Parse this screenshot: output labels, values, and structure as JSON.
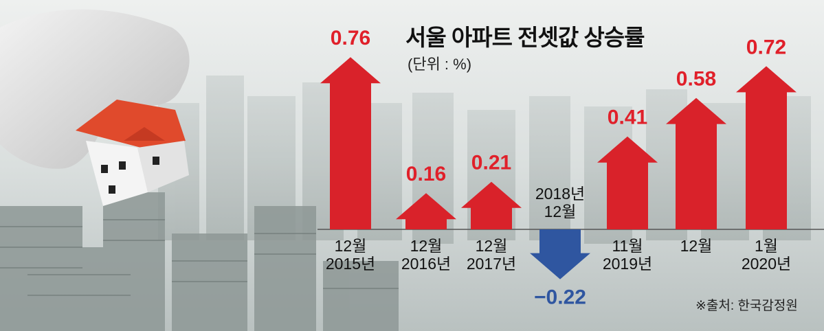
{
  "title": "서울 아파트 전셋값 상승률",
  "unit_label": "(단위 : %)",
  "source": "※출처: 한국감정원",
  "colors": {
    "positive": "#d9222a",
    "negative": "#2f56a0",
    "label_positive": "#e0202a",
    "label_negative": "#2f56a0"
  },
  "chart_data": {
    "type": "bar",
    "title": "서울 아파트 전셋값 상승률",
    "ylabel": "(단위 : %)",
    "categories": [
      "12월\n2015년",
      "12월\n2016년",
      "12월\n2017년",
      "2018년\n12월",
      "11월\n2019년",
      "12월",
      "1월\n2020년"
    ],
    "values": [
      0.76,
      0.16,
      0.21,
      -0.22,
      0.41,
      0.58,
      0.72
    ],
    "value_labels": [
      "0.76",
      "0.16",
      "0.21",
      "−0.22",
      "0.41",
      "0.58",
      "0.72"
    ],
    "ylim": [
      -0.3,
      0.8
    ],
    "grid": false,
    "legend": "none"
  }
}
